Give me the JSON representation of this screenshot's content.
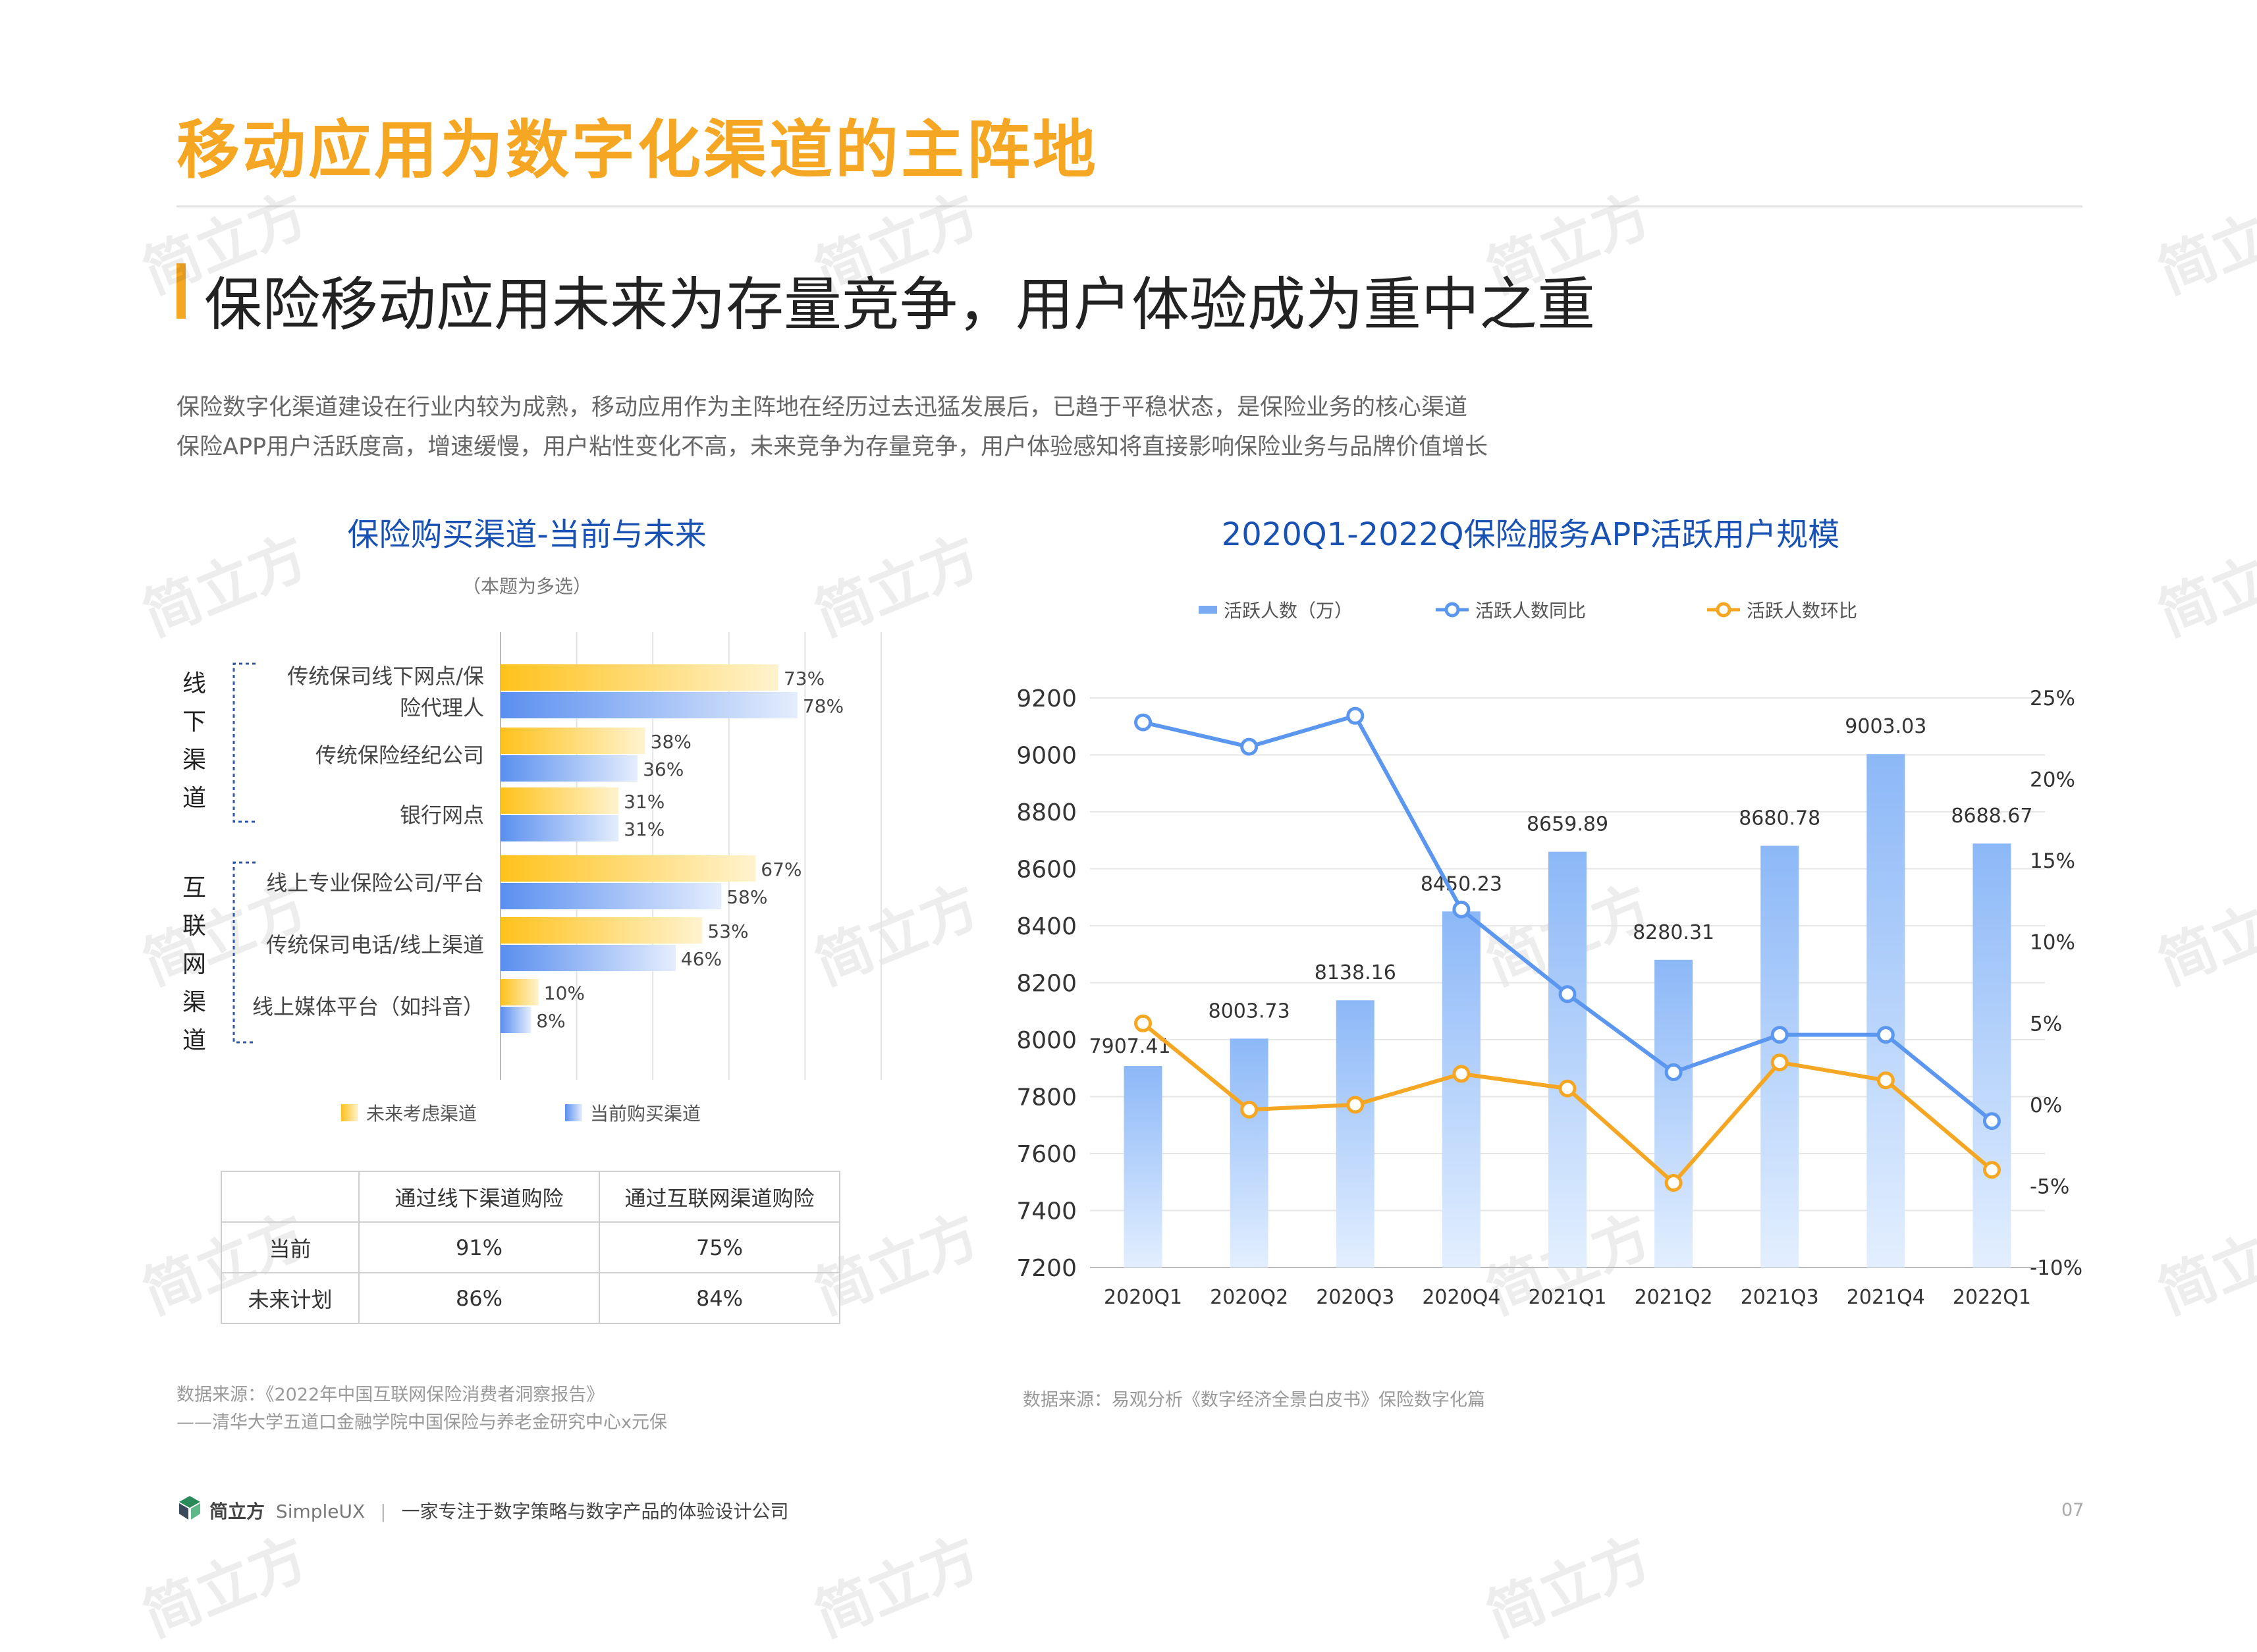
{
  "page": {
    "title": "移动应用为数字化渠道的主阵地",
    "subtitle": "保险移动应用未来为存量竞争，用户体验成为重中之重",
    "desc_lines": [
      "保险数字化渠道建设在行业内较为成熟，移动应用作为主阵地在经历过去迅猛发展后，已趋于平稳状态，是保险业务的核心渠道",
      "保险APP用户活跃度高，增速缓慢，用户粘性变化不高，未来竞争为存量竞争，用户体验感知将直接影响保险业务与品牌价值增长"
    ],
    "watermark": "简立方",
    "page_number": "07"
  },
  "left_chart_meta": {
    "note": "（本题为多选）",
    "group_offline": "线下渠道",
    "group_online": "互联网渠道"
  },
  "table": {
    "headers": [
      "",
      "通过线下渠道购险",
      "通过互联网渠道购险"
    ],
    "rows": [
      [
        "当前",
        "91%",
        "75%"
      ],
      [
        "未来计划",
        "86%",
        "84%"
      ]
    ]
  },
  "sources": {
    "left_line1": "数据来源：《2022年中国互联网保险消费者洞察报告》",
    "left_line2": "——清华大学五道口金融学院中国保险与养老金研究中心x元保",
    "right": "数据来源：易观分析《数字经济全景白皮书》保险数字化篇"
  },
  "footer": {
    "brand": "简立方",
    "brand_en": "SimpleUX",
    "tagline": "一家专注于数字策略与数字产品的体验设计公司"
  },
  "colors": {
    "accent": "#f5a623",
    "future_bar": "#ffc94a",
    "current_bar": "#5f92ee",
    "blue_line": "#5b96ef",
    "orange_line": "#f5a623",
    "title_blue": "#1a52b3"
  },
  "chart_data": [
    {
      "type": "bar",
      "orientation": "horizontal",
      "title": "保险购买渠道-当前与未来",
      "subtitle": "（本题为多选）",
      "categories": [
        "传统保司线下网点/保险代理人",
        "传统保险经纪公司",
        "银行网点",
        "线上专业保险公司/平台",
        "传统保司电话/线上渠道",
        "线上媒体平台（如抖音）"
      ],
      "category_display": [
        [
          "传统保司线下网点/保",
          "险代理人"
        ],
        [
          "传统保险经纪公司"
        ],
        [
          "银行网点"
        ],
        [
          "线上专业保险公司/平台"
        ],
        [
          "传统保司电话/线上渠道"
        ],
        [
          "线上媒体平台（如抖音）"
        ]
      ],
      "groups": [
        {
          "name": "线下渠道",
          "categories": [
            0,
            1,
            2
          ]
        },
        {
          "name": "互联网渠道",
          "categories": [
            3,
            4,
            5
          ]
        }
      ],
      "series": [
        {
          "name": "未来考虑渠道",
          "values": [
            73,
            38,
            31,
            67,
            53,
            10
          ],
          "labels": [
            "73%",
            "38%",
            "31%",
            "67%",
            "53%",
            "10%"
          ]
        },
        {
          "name": "当前购买渠道",
          "values": [
            78,
            36,
            31,
            58,
            46,
            8
          ],
          "labels": [
            "78%",
            "36%",
            "31%",
            "58%",
            "46%",
            "8%"
          ]
        }
      ],
      "xlim": [
        0,
        100
      ],
      "unit": "%"
    },
    {
      "type": "bar+line",
      "title": "2020Q1-2022Q保险服务APP活跃用户规模",
      "categories": [
        "2020Q1",
        "2020Q2",
        "2020Q3",
        "2020Q4",
        "2021Q1",
        "2021Q2",
        "2021Q3",
        "2021Q4",
        "2022Q1"
      ],
      "bars": {
        "name": "活跃人数（万）",
        "values": [
          7907.41,
          8003.73,
          8138.16,
          8450.23,
          8659.89,
          8280.31,
          8680.78,
          9003.03,
          8688.67
        ],
        "labels": [
          "7907.41",
          "8003.73",
          "8138.16",
          "8450.23",
          "8659.89",
          "8280.31",
          "8680.78",
          "9003.03",
          "8688.67"
        ]
      },
      "lines": [
        {
          "name": "活跃人数同比",
          "values": [
            23.5,
            22,
            23.9,
            12,
            6.8,
            2,
            4.3,
            4.3,
            -1
          ]
        },
        {
          "name": "活跃人数环比",
          "values": [
            5,
            -0.3,
            0,
            1.9,
            1,
            -4.8,
            2.6,
            1.5,
            -4
          ]
        }
      ],
      "y_left": {
        "min": 7200,
        "max": 9200,
        "ticks": [
          "9200",
          "9000",
          "8800",
          "8600",
          "8400",
          "8200",
          "8000",
          "7800",
          "7600",
          "7400",
          "7200"
        ]
      },
      "y_right": {
        "min": -10,
        "max": 25,
        "ticks": [
          "25%",
          "20%",
          "15%",
          "10%",
          "5%",
          "0%",
          "-5%",
          "-10%"
        ]
      },
      "legend": [
        "活跃人数（万）",
        "活跃人数同比",
        "活跃人数环比"
      ]
    }
  ]
}
